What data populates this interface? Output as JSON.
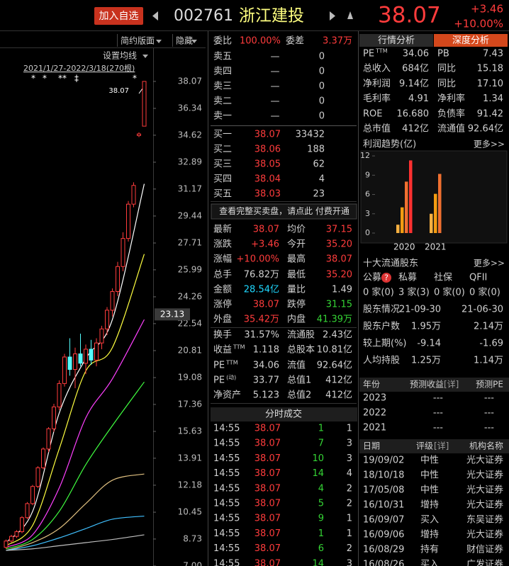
{
  "header": {
    "add_fav": "加入自选",
    "code": "002761",
    "name": "浙江建投",
    "price": "38.07",
    "change": "+3.46",
    "change_pct": "+10.00%"
  },
  "toolbar": {
    "simple_layout": "简约版面",
    "hide": "隐藏"
  },
  "kline": {
    "ma_setting": "设置均线",
    "range": "2021/1/27-2022/3/18(270根)",
    "markers": [
      "*",
      "*",
      "**",
      "‡",
      "*"
    ],
    "high_label": "38.07",
    "cursor_price": 23.13,
    "ylim": [
      7.0,
      40.11
    ],
    "yticks": [
      38.07,
      36.34,
      34.62,
      32.89,
      31.17,
      29.44,
      27.71,
      25.99,
      24.26,
      22.54,
      20.81,
      19.08,
      17.36,
      15.63,
      13.91,
      12.18,
      10.45,
      8.73,
      {
        "value": 7.0,
        "label": "7.00"
      }
    ],
    "up_color": "#ff3c3c",
    "down_color": "#54fcfc",
    "ohlc": [
      [
        8.2,
        8.7,
        8.1,
        8.6
      ],
      [
        8.6,
        9.0,
        8.5,
        8.9
      ],
      [
        8.9,
        9.3,
        8.8,
        9.2
      ],
      [
        9.2,
        10.2,
        9.1,
        10.1
      ],
      [
        10.1,
        11.1,
        10.0,
        11.0
      ],
      [
        11.0,
        12.2,
        10.9,
        12.1
      ],
      [
        12.1,
        13.4,
        12.0,
        13.3
      ],
      [
        13.3,
        14.6,
        13.2,
        14.5
      ],
      [
        14.5,
        15.9,
        14.3,
        15.8
      ],
      [
        15.8,
        17.4,
        15.6,
        17.2
      ],
      [
        17.2,
        18.9,
        17.0,
        18.7
      ],
      [
        18.7,
        20.6,
        18.5,
        20.4
      ],
      [
        20.4,
        21.6,
        19.2,
        19.6
      ],
      [
        19.6,
        21.0,
        18.4,
        20.6
      ],
      [
        20.6,
        21.9,
        19.8,
        20.0
      ],
      [
        20.0,
        21.2,
        19.3,
        20.9
      ],
      [
        20.9,
        21.5,
        19.9,
        20.2
      ],
      [
        20.2,
        21.6,
        19.8,
        21.3
      ],
      [
        21.3,
        22.4,
        20.9,
        22.2
      ],
      [
        22.2,
        23.6,
        21.8,
        23.4
      ],
      [
        23.4,
        24.8,
        23.0,
        24.6
      ],
      [
        24.6,
        26.5,
        24.3,
        26.2
      ],
      [
        26.2,
        28.4,
        25.9,
        28.0
      ],
      [
        28.0,
        30.4,
        27.8,
        30.2
      ],
      [
        30.2,
        31.6,
        30.0,
        31.4
      ],
      [
        34.6,
        34.8,
        34.5,
        34.7
      ],
      [
        35.2,
        38.07,
        35.2,
        38.07
      ]
    ],
    "ma_x": [
      0,
      5,
      10,
      15,
      20,
      26
    ],
    "ma": [
      {
        "color": "#ffffff",
        "values": [
          8.5,
          10.5,
          16.8,
          20.3,
          22.8,
          31.5
        ]
      },
      {
        "color": "#ffff40",
        "values": [
          8.3,
          9.6,
          14.5,
          19.5,
          21.0,
          27.0
        ]
      },
      {
        "color": "#ff40ff",
        "values": [
          8.2,
          9.0,
          12.0,
          16.5,
          19.0,
          22.8
        ]
      },
      {
        "color": "#40ff40",
        "values": [
          8.1,
          8.7,
          10.5,
          13.5,
          16.0,
          18.8
        ]
      },
      {
        "color": "#e0c080",
        "values": [
          8.0,
          8.5,
          9.4,
          11.0,
          12.5,
          12.9
        ]
      },
      {
        "color": "#40c0ff",
        "values": [
          8.0,
          8.3,
          8.8,
          9.4,
          10.0,
          10.2
        ]
      },
      {
        "color": "#c0c0c0",
        "values": [
          8.0,
          8.1,
          8.3,
          8.5,
          8.7,
          9.0
        ]
      }
    ]
  },
  "order_book": {
    "ratio_label": "委比",
    "ratio": "100.00%",
    "diff_label": "委差",
    "diff": "3.37万",
    "sell": [
      {
        "label": "卖五",
        "price": "—",
        "volume": "0"
      },
      {
        "label": "卖四",
        "price": "—",
        "volume": "0"
      },
      {
        "label": "卖三",
        "price": "—",
        "volume": "0"
      },
      {
        "label": "卖二",
        "price": "—",
        "volume": "0"
      },
      {
        "label": "卖一",
        "price": "—",
        "volume": "0"
      }
    ],
    "buy": [
      {
        "label": "买一",
        "price": "38.07",
        "volume": "33432"
      },
      {
        "label": "买二",
        "price": "38.06",
        "volume": "188"
      },
      {
        "label": "买三",
        "price": "38.05",
        "volume": "62"
      },
      {
        "label": "买四",
        "price": "38.04",
        "volume": "4"
      },
      {
        "label": "买五",
        "price": "38.03",
        "volume": "23"
      }
    ],
    "notice": "查看完整买卖盘，请点此 付费开通"
  },
  "quote": {
    "rows": [
      {
        "l1": "最新",
        "v1": "38.07",
        "l2": "均价",
        "v2": "37.15"
      },
      {
        "l1": "涨跌",
        "v1": "+3.46",
        "l2": "今开",
        "v2": "35.20"
      },
      {
        "l1": "涨幅",
        "v1": "+10.00%",
        "l2": "最高",
        "v2": "38.07"
      },
      {
        "l1": "总手",
        "v1": "76.82万",
        "l2": "最低",
        "v2": "35.20"
      },
      {
        "l1": "金额",
        "v1": "28.54亿",
        "l2": "量比",
        "v2": "1.49"
      },
      {
        "l1": "涨停",
        "v1": "38.07",
        "l2": "跌停",
        "v2": "31.15"
      },
      {
        "l1": "外盘",
        "v1": "35.42万",
        "l2": "内盘",
        "v2": "41.39万"
      },
      {
        "l1": "换手",
        "v1": "31.57%",
        "l2": "流通股",
        "v2": "2.43亿"
      },
      {
        "l1": "收益",
        "sup": "TTM",
        "v1": "1.118",
        "l2": "总股本",
        "v2": "10.81亿"
      },
      {
        "l1": "PE",
        "sup": "TTM",
        "v1": "34.06",
        "l2": "流值",
        "v2": "92.64亿"
      },
      {
        "l1": "PE",
        "sup": "(动)",
        "v1": "33.77",
        "l2": "总值1",
        "v2": "412亿"
      },
      {
        "l1": "净资产",
        "v1": "5.123",
        "l2": "总值2",
        "v2": "412亿"
      }
    ]
  },
  "trades": {
    "title": "分时成交",
    "rows": [
      [
        "14:55",
        "38.07",
        "1",
        "1"
      ],
      [
        "14:55",
        "38.07",
        "7",
        "3"
      ],
      [
        "14:55",
        "38.07",
        "10",
        "3"
      ],
      [
        "14:55",
        "38.07",
        "14",
        "4"
      ],
      [
        "14:55",
        "38.07",
        "4",
        "2"
      ],
      [
        "14:55",
        "38.07",
        "5",
        "2"
      ],
      [
        "14:55",
        "38.07",
        "9",
        "1"
      ],
      [
        "14:55",
        "38.07",
        "1",
        "1"
      ],
      [
        "14:55",
        "38.07",
        "6",
        "2"
      ],
      [
        "14:55",
        "38.07",
        "14",
        "3"
      ]
    ]
  },
  "fundamentals": {
    "tabs": [
      "行情分析",
      "深度分析"
    ],
    "rows": [
      {
        "l1": "PE",
        "sup": "TTM",
        "v1": "34.06",
        "l2": "PB",
        "v2": "7.43"
      },
      {
        "l1": "总收入",
        "v1": "684亿",
        "l2": "同比",
        "v2": "15.18"
      },
      {
        "l1": "净利润",
        "v1": "9.14亿",
        "l2": "同比",
        "v2": "17.10"
      },
      {
        "l1": "毛利率",
        "v1": "4.91",
        "l2": "净利率",
        "v2": "1.34"
      },
      {
        "l1": "ROE",
        "v1": "16.680",
        "l2": "负债率",
        "v2": "91.42"
      },
      {
        "l1": "总市值",
        "v1": "412亿",
        "l2": "流通值",
        "v2": "92.64亿"
      }
    ]
  },
  "profit_trend": {
    "title": "利润趋势(亿)",
    "more": "更多>>",
    "ylim": [
      0,
      13
    ],
    "yticks": [
      0,
      3,
      6,
      9,
      12
    ],
    "colors": [
      "#f5b041",
      "#f39c12",
      "#f07030",
      "#ff3030"
    ],
    "groups": [
      {
        "label": "2020",
        "values": [
          1.3,
          4.0,
          8.0,
          11.3
        ]
      },
      {
        "label": "2021",
        "values": [
          3.0,
          6.1,
          9.2
        ]
      }
    ]
  },
  "holders": {
    "title": "十大流通股东",
    "more": "更多>>",
    "help": "?",
    "types": [
      "公募",
      "私募",
      "社保",
      "QFII"
    ],
    "counts": [
      "0 家(0)",
      "3 家(3)",
      "0 家(0)",
      "0 家(0)"
    ]
  },
  "shareholders": {
    "rows": [
      [
        "股东情况",
        "21-09-30",
        "21-06-30"
      ],
      [
        "股东户数",
        "1.95万",
        "2.14万"
      ],
      [
        "较上期(%)",
        "-9.14",
        "-1.69"
      ],
      [
        "人均持股",
        "1.25万",
        "1.14万"
      ]
    ]
  },
  "forecast": {
    "header": [
      "年份",
      "预测收益",
      "[详]",
      "预测PE"
    ],
    "rows": [
      [
        "2023",
        "---",
        "---"
      ],
      [
        "2022",
        "---",
        "---"
      ],
      [
        "2021",
        "---",
        "---"
      ]
    ]
  },
  "ratings": {
    "header": [
      "日期",
      "评级",
      "[详]",
      "机构名称"
    ],
    "rows": [
      [
        "19/09/02",
        "中性",
        "光大证券"
      ],
      [
        "18/10/18",
        "中性",
        "光大证券"
      ],
      [
        "17/05/08",
        "中性",
        "光大证券"
      ],
      [
        "16/10/31",
        "增持",
        "光大证券"
      ],
      [
        "16/09/07",
        "买入",
        "东吴证券"
      ],
      [
        "16/09/06",
        "增持",
        "光大证券"
      ],
      [
        "16/08/29",
        "持有",
        "财信证券"
      ],
      [
        "16/08/26",
        "买入",
        "广发证券"
      ]
    ]
  }
}
